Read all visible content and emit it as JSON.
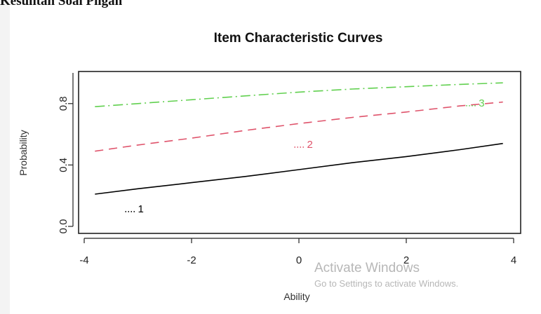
{
  "document": {
    "heading": "Kesulitan Soal Pilgan"
  },
  "chart_data": {
    "type": "line",
    "title": "Item Characteristic Curves",
    "xlabel": "Ability",
    "ylabel": "Probability",
    "xlim": [
      -4,
      4
    ],
    "ylim": [
      0.0,
      1.0
    ],
    "x_ticks": [
      -4,
      -2,
      0,
      2,
      4
    ],
    "y_ticks": [
      0.0,
      0.4,
      0.8
    ],
    "grid": false,
    "series": [
      {
        "name": "1",
        "label_text": "1",
        "label_pos": [
          -3.0,
          0.11
        ],
        "color": "#000000",
        "dash": "solid",
        "x": [
          -3.8,
          -3,
          -2,
          -1,
          0,
          1,
          2,
          3,
          3.8
        ],
        "y": [
          0.21,
          0.245,
          0.285,
          0.325,
          0.37,
          0.415,
          0.455,
          0.5,
          0.54
        ]
      },
      {
        "name": "2",
        "label_text": "2",
        "label_pos": [
          0.15,
          0.53
        ],
        "color": "#df536b",
        "dash": "dashed",
        "x": [
          -3.8,
          -3,
          -2,
          -1,
          0,
          1,
          2,
          3,
          3.8
        ],
        "y": [
          0.49,
          0.53,
          0.575,
          0.625,
          0.67,
          0.71,
          0.745,
          0.785,
          0.81
        ]
      },
      {
        "name": "3",
        "label_text": "3",
        "label_pos": [
          3.35,
          0.8
        ],
        "color": "#61d04f",
        "dash": "dashdot",
        "x": [
          -3.8,
          -3,
          -2,
          -1,
          0,
          1,
          2,
          3,
          3.8
        ],
        "y": [
          0.78,
          0.8,
          0.825,
          0.85,
          0.875,
          0.895,
          0.91,
          0.925,
          0.935
        ]
      }
    ]
  },
  "watermark": {
    "title": "Activate Windows",
    "subtitle": "Go to Settings to activate Windows."
  }
}
